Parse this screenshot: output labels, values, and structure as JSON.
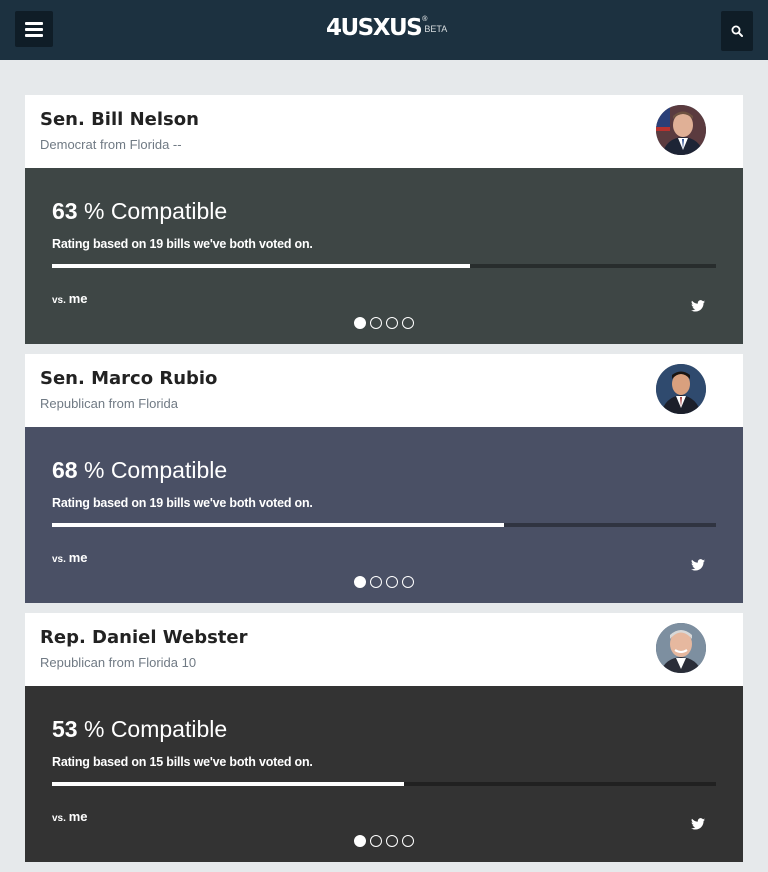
{
  "header": {
    "logo_text": "4USXUS",
    "logo_registered": "®",
    "logo_beta": "BETA",
    "menu_icon": "hamburger-menu-icon",
    "search_icon": "search-icon",
    "background_color": "#1c3140"
  },
  "cards": [
    {
      "name": "Sen. Bill Nelson",
      "party": "Democrat from Florida --",
      "percent": "63",
      "percent_suffix": " % Compatible",
      "rating_prefix": "Rating based on ",
      "bills": "19",
      "rating_suffix": " bills we've both voted on.",
      "progress_fraction": 0.63,
      "vs_label": "vs.",
      "vs_target": "me",
      "color": "#3e4645",
      "active_slide": 1,
      "slide_count": 4
    },
    {
      "name": "Sen. Marco Rubio",
      "party": "Republican from Florida",
      "percent": "68",
      "percent_suffix": " % Compatible",
      "rating_prefix": "Rating based on ",
      "bills": "19",
      "rating_suffix": " bills we've both voted on.",
      "progress_fraction": 0.68,
      "vs_label": "vs.",
      "vs_target": "me",
      "color": "#4a5065",
      "active_slide": 1,
      "slide_count": 4
    },
    {
      "name": "Rep. Daniel Webster",
      "party": "Republican from Florida 10",
      "percent": "53",
      "percent_suffix": " % Compatible",
      "rating_prefix": "Rating based on ",
      "bills": "15",
      "rating_suffix": " bills we've both voted on.",
      "progress_fraction": 0.53,
      "vs_label": "vs.",
      "vs_target": "me",
      "color": "#333333",
      "active_slide": 1,
      "slide_count": 4
    }
  ]
}
